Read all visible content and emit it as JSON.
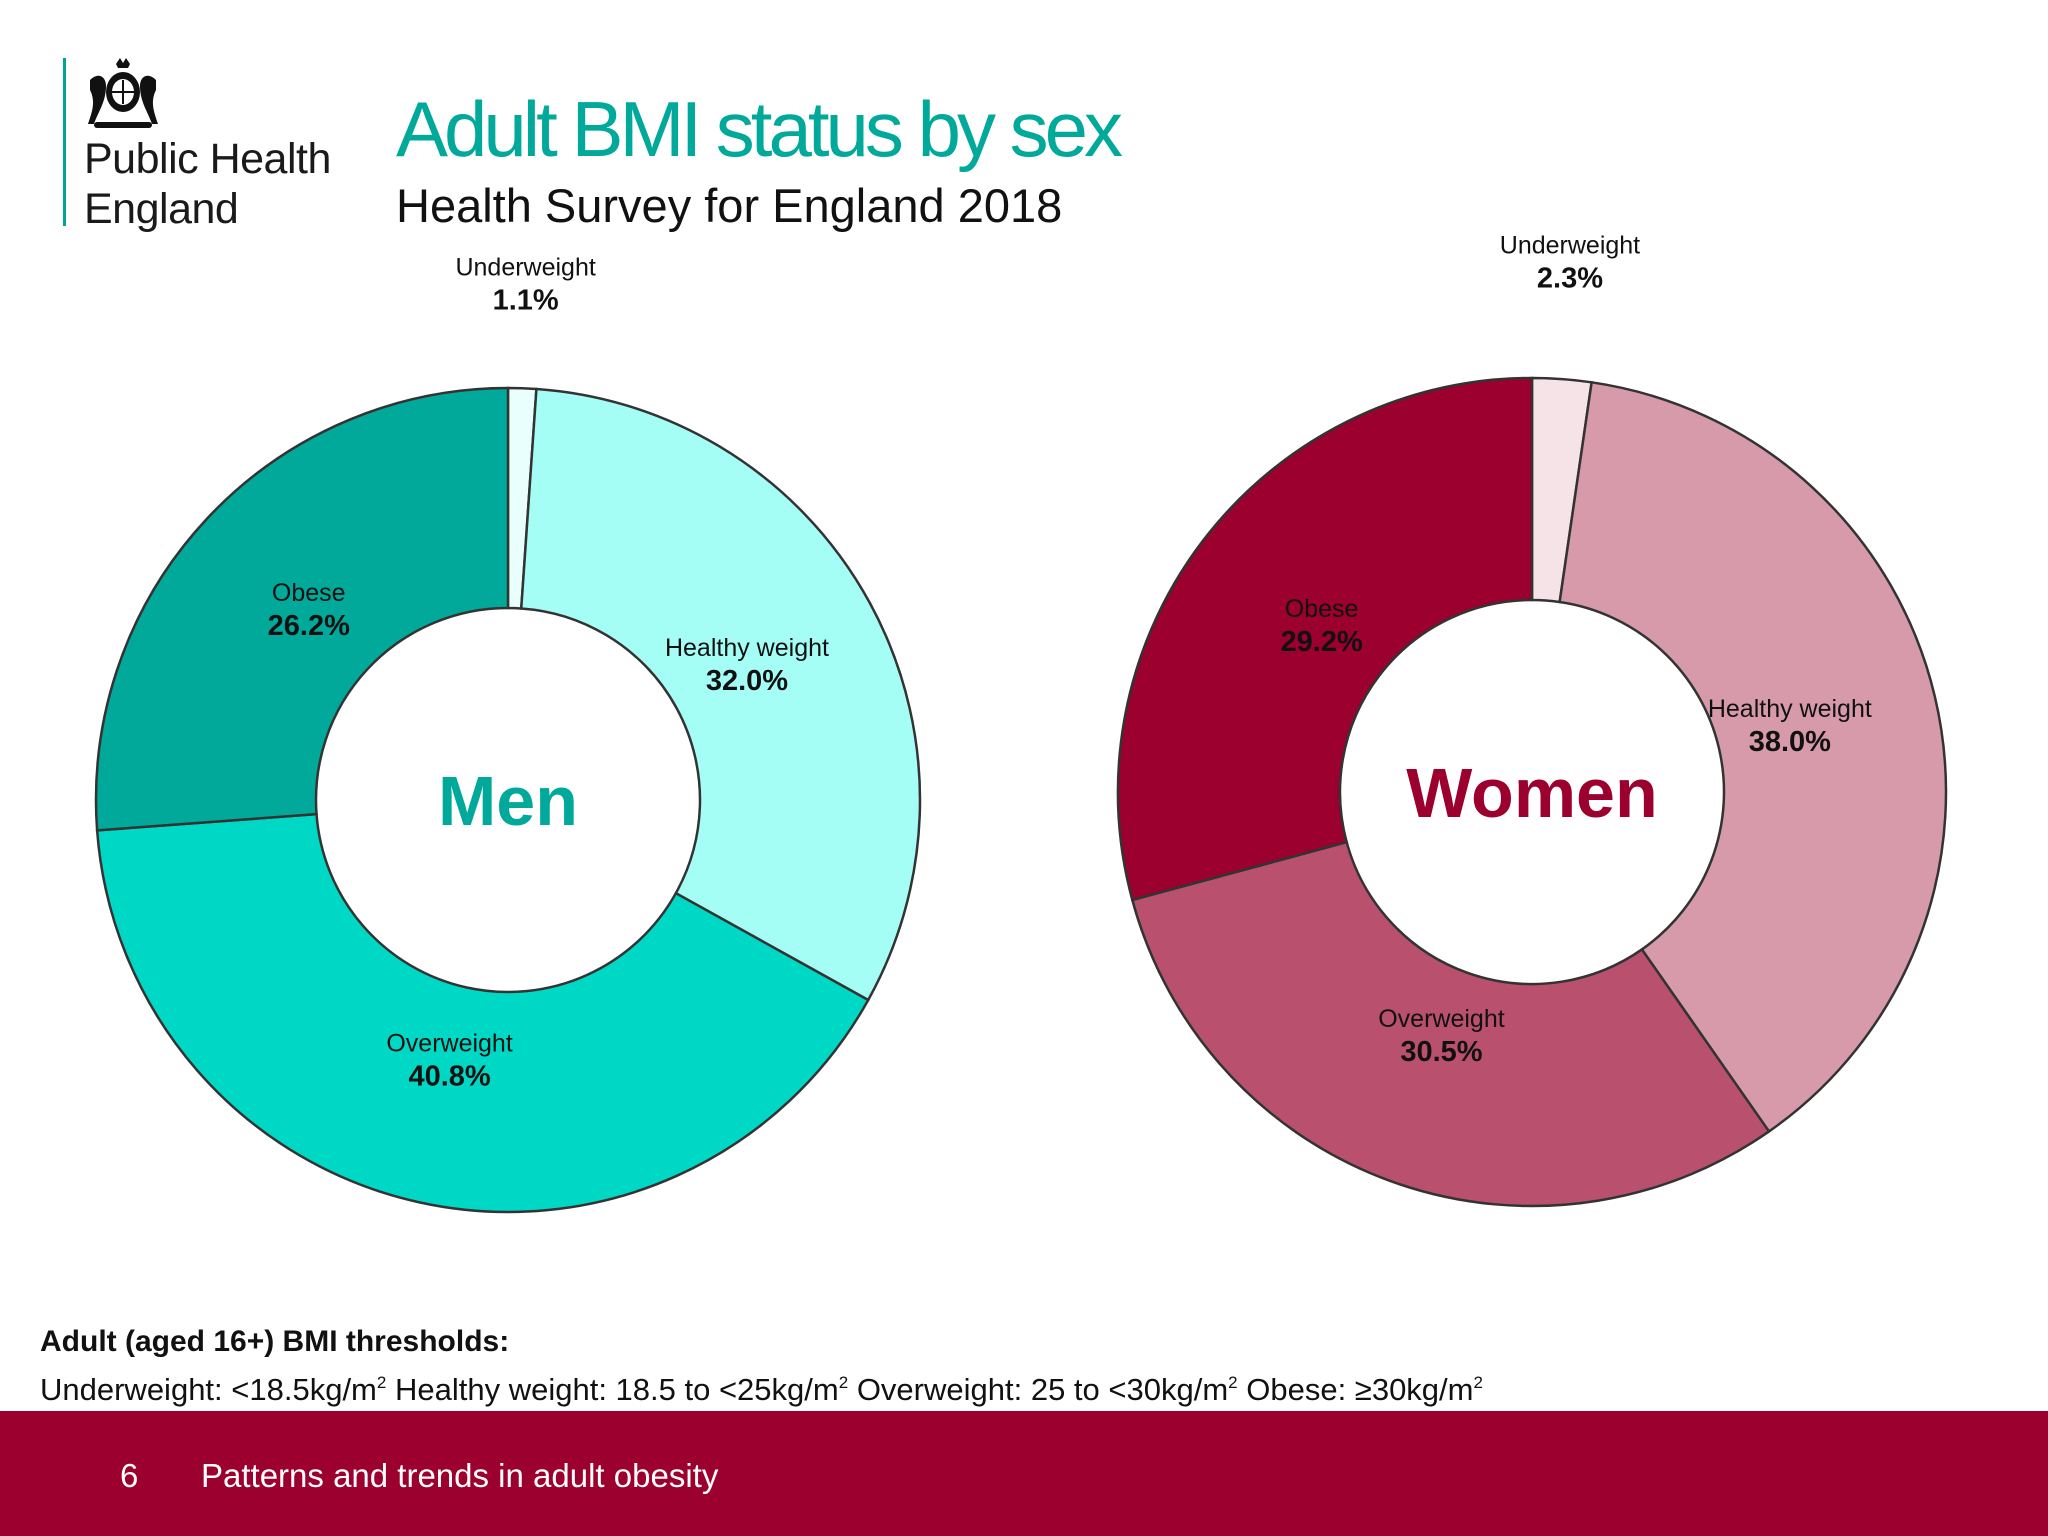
{
  "brand": {
    "line1": "Public Health",
    "line2": "England",
    "logo_icon": "royal-crest-icon"
  },
  "title": "Adult BMI status by sex",
  "subtitle": "Health Survey for England 2018",
  "chart_data": [
    {
      "type": "pie",
      "name": "Men",
      "categories": [
        "Underweight",
        "Healthy weight",
        "Overweight",
        "Obese"
      ],
      "values": [
        1.1,
        32.0,
        40.8,
        26.2
      ],
      "value_labels": [
        "1.1%",
        "32.0%",
        "40.8%",
        "26.2%"
      ],
      "colors": [
        "#e8fffd",
        "#a4fef6",
        "#00d8c6",
        "#00a99a"
      ],
      "center_color": "#00a99a"
    },
    {
      "type": "pie",
      "name": "Women",
      "categories": [
        "Underweight",
        "Healthy weight",
        "Overweight",
        "Obese"
      ],
      "values": [
        2.3,
        38.0,
        30.5,
        29.2
      ],
      "value_labels": [
        "2.3%",
        "38.0%",
        "30.5%",
        "29.2%"
      ],
      "colors": [
        "#f5e3e8",
        "#d69aab",
        "#b8506e",
        "#9b002e"
      ],
      "center_color": "#9b002e"
    }
  ],
  "thresholds": {
    "title": "Adult (aged 16+) BMI thresholds:",
    "underweight": "Underweight: <18.5kg/m",
    "healthy": "Healthy weight: 18.5 to <25kg/m",
    "overweight": "Overweight: 25 to <30kg/m",
    "obese": "Obese: ≥30kg/m",
    "exponent": "2"
  },
  "footer": {
    "page_number": "6",
    "text": "Patterns and trends in adult obesity"
  }
}
